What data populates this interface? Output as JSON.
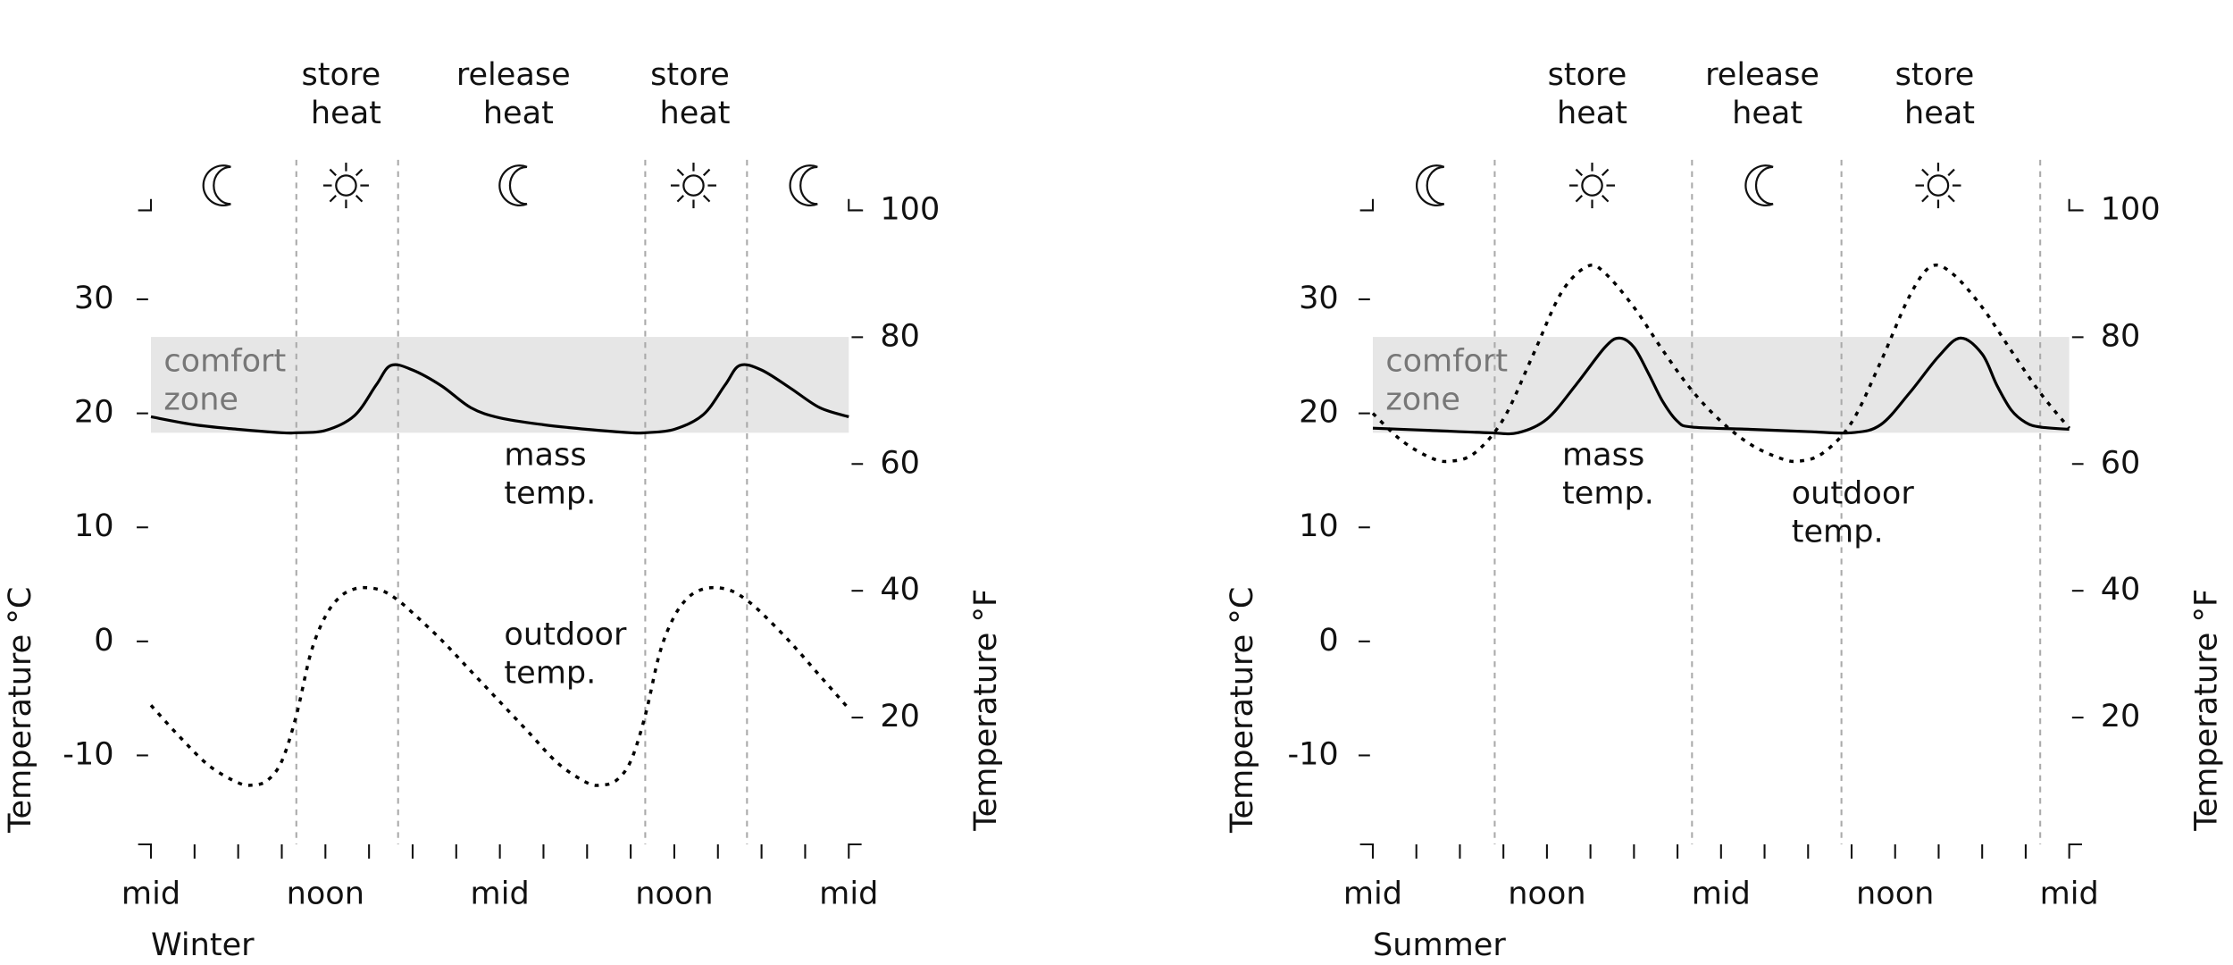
{
  "chart_data": [
    {
      "type": "line",
      "title": "Winter",
      "ylabel": "Temperature °C",
      "y2label": "Temperature °F",
      "xlim": [
        0,
        48
      ],
      "xticks": [
        {
          "value": 0,
          "label": "mid"
        },
        {
          "value": 12,
          "label": "noon"
        },
        {
          "value": 24,
          "label": "mid"
        },
        {
          "value": 36,
          "label": "noon"
        },
        {
          "value": 48,
          "label": "mid"
        }
      ],
      "xminor": [
        3,
        6,
        9,
        15,
        18,
        21,
        27,
        30,
        33,
        39,
        42,
        45
      ],
      "ylim": [
        -17.8,
        37.8
      ],
      "yticks": [
        -10,
        0,
        10,
        20,
        30
      ],
      "y2lim": [
        0,
        100
      ],
      "y2ticks": [
        20,
        40,
        60,
        80,
        100
      ],
      "comfort_zone": {
        "label": "comfort zone",
        "range": [
          18.3,
          26.7
        ],
        "color": "#e6e6e6"
      },
      "phase_boundaries": [
        10,
        17,
        34,
        41
      ],
      "phase_labels": [
        "store heat",
        "release heat",
        "store heat"
      ],
      "series": [
        {
          "name": "mass temp.",
          "color": "#000000",
          "dash": "solid",
          "x": [
            0,
            3,
            6,
            9,
            10,
            12,
            14,
            15.5,
            16.5,
            18,
            20,
            22,
            24,
            27,
            30,
            33,
            34,
            36,
            38,
            39.5,
            40.5,
            42,
            44,
            46,
            48
          ],
          "values": [
            19.7,
            19.0,
            18.6,
            18.3,
            18.3,
            18.5,
            19.8,
            22.5,
            24.2,
            23.8,
            22.4,
            20.5,
            19.6,
            19.0,
            18.6,
            18.3,
            18.3,
            18.6,
            19.9,
            22.5,
            24.2,
            23.8,
            22.2,
            20.5,
            19.7
          ]
        },
        {
          "name": "outdoor temp.",
          "color": "#000000",
          "dash": "dotted",
          "x": [
            0,
            2,
            4,
            6,
            7,
            8,
            9,
            10,
            11,
            12,
            13,
            14,
            15,
            16,
            17,
            18,
            20,
            22,
            24,
            26,
            28,
            30,
            31,
            32,
            33,
            34,
            35,
            36,
            37,
            38,
            39,
            40,
            41,
            42,
            44,
            46,
            48
          ],
          "values": [
            -5.6,
            -8.4,
            -10.9,
            -12.4,
            -12.6,
            -12.2,
            -10.5,
            -6.5,
            -1.0,
            2.2,
            3.9,
            4.6,
            4.7,
            4.4,
            3.6,
            2.5,
            0.1,
            -2.6,
            -5.3,
            -8.0,
            -10.7,
            -12.4,
            -12.6,
            -12.2,
            -10.5,
            -6.5,
            -1.0,
            2.2,
            3.9,
            4.6,
            4.7,
            4.4,
            3.6,
            2.5,
            -0.1,
            -3.0,
            -5.9
          ]
        }
      ]
    },
    {
      "type": "line",
      "title": "Summer",
      "ylabel": "Temperature °C",
      "y2label": "Temperature °F",
      "xlim": [
        0,
        48
      ],
      "xticks": [
        {
          "value": 0,
          "label": "mid"
        },
        {
          "value": 12,
          "label": "noon"
        },
        {
          "value": 24,
          "label": "mid"
        },
        {
          "value": 36,
          "label": "noon"
        },
        {
          "value": 48,
          "label": "mid"
        }
      ],
      "xminor": [
        3,
        6,
        9,
        15,
        18,
        21,
        27,
        30,
        33,
        39,
        42,
        45
      ],
      "ylim": [
        -17.8,
        37.8
      ],
      "yticks": [
        -10,
        0,
        10,
        20,
        30
      ],
      "y2lim": [
        0,
        100
      ],
      "y2ticks": [
        20,
        40,
        60,
        80,
        100
      ],
      "comfort_zone": {
        "label": "comfort zone",
        "range": [
          18.3,
          26.7
        ],
        "color": "#e6e6e6"
      },
      "phase_boundaries": [
        8.4,
        22,
        32.3,
        46
      ],
      "phase_labels": [
        "store heat",
        "release heat",
        "store heat"
      ],
      "series": [
        {
          "name": "mass temp.",
          "color": "#000000",
          "dash": "solid",
          "x": [
            0,
            4,
            8,
            10,
            12,
            14,
            16,
            17,
            18,
            19,
            20,
            21,
            22,
            26,
            30,
            33,
            35,
            37,
            39,
            40.5,
            42,
            43,
            44,
            45,
            46,
            48
          ],
          "values": [
            18.7,
            18.5,
            18.3,
            18.3,
            19.5,
            22.5,
            25.8,
            26.6,
            25.8,
            23.5,
            21.0,
            19.3,
            18.8,
            18.6,
            18.4,
            18.3,
            19.0,
            21.8,
            25.0,
            26.6,
            25.2,
            22.5,
            20.3,
            19.2,
            18.8,
            18.6
          ]
        },
        {
          "name": "outdoor temp.",
          "color": "#000000",
          "dash": "dotted",
          "x": [
            0,
            2,
            4,
            5.3,
            7,
            9,
            11,
            13,
            14.8,
            16,
            18,
            20,
            22,
            24,
            26,
            28,
            29.3,
            31,
            33,
            35,
            37,
            38.5,
            40,
            42,
            44,
            46,
            48
          ],
          "values": [
            20,
            17.6,
            16.1,
            15.8,
            16.5,
            19.5,
            25,
            30.6,
            32.9,
            32.3,
            29.3,
            25.5,
            22,
            19.3,
            17.3,
            16.1,
            15.8,
            16.5,
            19.2,
            24.5,
            30.3,
            32.9,
            32.2,
            29.3,
            25.5,
            21.8,
            18.7
          ]
        }
      ]
    }
  ]
}
